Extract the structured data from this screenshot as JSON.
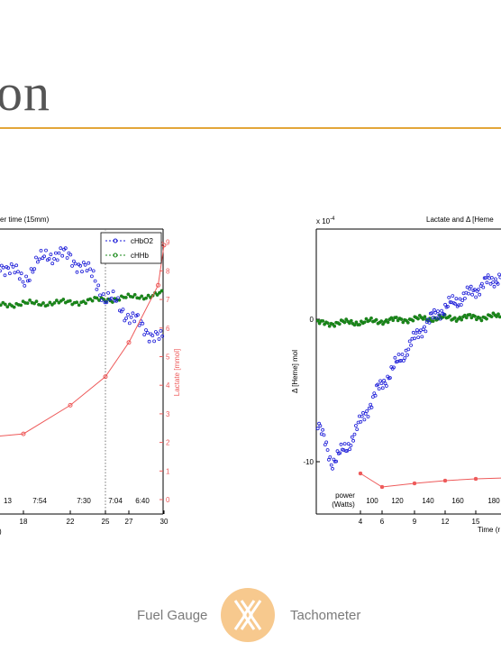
{
  "slide": {
    "title_fragment": "on",
    "accent_color": "#e3a63a"
  },
  "footer": {
    "left_label": "Fuel Gauge",
    "right_label": "Tachometer",
    "logo_icon": "x-logo-icon",
    "logo_color": "#f7c98e"
  },
  "chart_data": [
    {
      "type": "line",
      "title": "er time (15mm)",
      "x_ticks": [
        "18",
        "22",
        "25",
        "27",
        "30"
      ],
      "x_label": ")",
      "time_labels": [
        "13",
        "7:54",
        "7:30",
        "7:04",
        "6:40"
      ],
      "y2_label": "Lactate [mmol]",
      "y2_ticks": [
        "0",
        "1",
        "2",
        "3",
        "4",
        "5",
        "6",
        "7",
        "8",
        "9"
      ],
      "y2_lim": [
        0,
        9.5
      ],
      "marker_line_x": 25,
      "legend": [
        "cHbO2",
        "cHHb"
      ],
      "colors": {
        "cHbO2": "#1a1ad8",
        "cHHb": "#1a8a1a",
        "lactate": "#ee5a5a"
      },
      "series": [
        {
          "name": "cHbO2",
          "x": [
            10,
            12,
            14,
            16,
            18,
            20,
            22,
            24,
            25,
            26,
            27,
            28,
            29,
            30
          ],
          "y": [
            8.6,
            8.2,
            8.0,
            8.3,
            7.7,
            8.6,
            8.5,
            7.8,
            7.0,
            6.9,
            6.4,
            6.1,
            5.8,
            5.5
          ]
        },
        {
          "name": "cHHb",
          "x": [
            10,
            14,
            18,
            22,
            25,
            28,
            30
          ],
          "y": [
            6.8,
            6.8,
            6.85,
            6.9,
            7.0,
            7.1,
            7.2
          ]
        },
        {
          "name": "Lactate",
          "x": [
            10,
            18,
            22,
            25,
            27,
            29.5,
            30
          ],
          "y": [
            2.0,
            2.3,
            3.3,
            4.3,
            5.5,
            7.5,
            8.9
          ]
        }
      ]
    },
    {
      "type": "scatter",
      "title": "Lactate and Δ [Heme",
      "y_label": "Δ [Heme] mol",
      "y_exponent": "x 10",
      "y_exponent_power": "-4",
      "y_ticks": [
        "0",
        "-10"
      ],
      "y_lim": [
        -13,
        7
      ],
      "x_ticks": [
        "4",
        "6",
        "9",
        "12",
        "15"
      ],
      "x_label": "Time (r",
      "power_label_1": "power",
      "power_label_2": "(Watts)",
      "power_values": [
        "100",
        "120",
        "140",
        "160",
        "180"
      ],
      "colors": {
        "cHbO2": "#1a1ad8",
        "cHHb": "#1a8a1a",
        "lactate": "#ee5a5a"
      },
      "series": [
        {
          "name": "cHbO2",
          "x": [
            0,
            1,
            2,
            3,
            4,
            5,
            6,
            7,
            8,
            9,
            10,
            11,
            12,
            13,
            14,
            15,
            16,
            17,
            18
          ],
          "y": [
            -7,
            -10,
            -9,
            -7,
            -5,
            -3.5,
            -2,
            -0.5,
            0.5,
            1.2,
            1.8,
            2.5,
            3.0,
            3.4,
            3.8,
            4.0,
            4.3,
            4.7,
            5.0
          ]
        },
        {
          "name": "cHHb",
          "x": [
            0,
            3,
            6,
            9,
            12,
            15,
            18
          ],
          "y": [
            -0.3,
            -0.2,
            0.0,
            0.1,
            0.2,
            0.3,
            0.4
          ]
        },
        {
          "name": "Lactate",
          "x": [
            4,
            6,
            9,
            12,
            15,
            18
          ],
          "y": [
            1.9,
            1.1,
            1.3,
            1.5,
            1.6,
            1.7
          ]
        }
      ]
    }
  ]
}
